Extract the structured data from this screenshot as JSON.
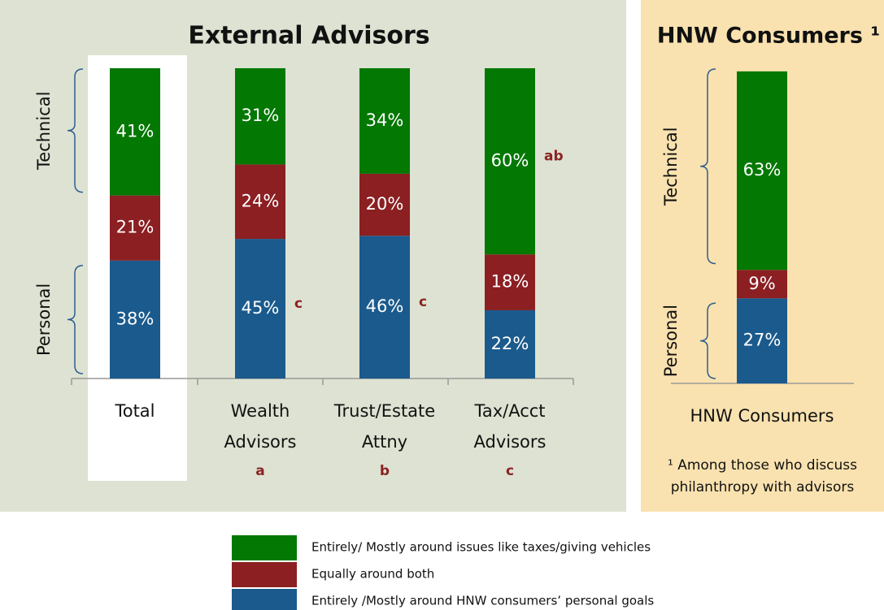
{
  "chart_data": [
    {
      "type": "bar",
      "stacked": true,
      "title": "External Advisors",
      "categories": [
        "Total",
        "Wealth Advisors",
        "Trust/Estate Attny",
        "Tax/Acct Advisors"
      ],
      "group_letters": [
        null,
        "a",
        "b",
        "c"
      ],
      "significance": [
        null,
        "c",
        "c",
        "ab"
      ],
      "bracket_labels": [
        "Technical",
        "Personal"
      ],
      "ylim": [
        0,
        100
      ],
      "series": [
        {
          "name": "Entirely /Mostly around HNW consumers’ personal goals",
          "color": "#1b5a8c",
          "values": [
            38,
            45,
            46,
            22
          ],
          "value_labels": [
            "38%",
            "45%",
            "46%",
            "22%"
          ]
        },
        {
          "name": "Equally around both",
          "color": "#8b1f22",
          "values": [
            21,
            24,
            20,
            18
          ],
          "value_labels": [
            "21%",
            "24%",
            "20%",
            "18%"
          ]
        },
        {
          "name": "Entirely/ Mostly around issues like taxes/giving vehicles",
          "color": "#037803",
          "values": [
            41,
            31,
            34,
            60
          ],
          "value_labels": [
            "41%",
            "31%",
            "34%",
            "60%"
          ]
        }
      ]
    },
    {
      "type": "bar",
      "stacked": true,
      "title": "HNW Consumers ¹",
      "categories": [
        "HNW Consumers"
      ],
      "bracket_labels": [
        "Technical",
        "Personal"
      ],
      "footnote": "¹ Among those who discuss philanthropy with advisors",
      "ylim": [
        0,
        100
      ],
      "series": [
        {
          "color": "#1b5a8c",
          "values": [
            27
          ],
          "value_labels": [
            "27%"
          ]
        },
        {
          "color": "#8b1f22",
          "values": [
            9
          ],
          "value_labels": [
            "9%"
          ]
        },
        {
          "color": "#037803",
          "values": [
            63
          ],
          "value_labels": [
            "63%"
          ]
        }
      ]
    }
  ]
}
